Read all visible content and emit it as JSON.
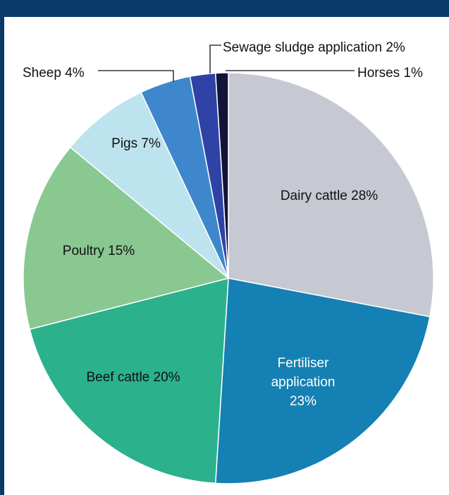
{
  "page": {
    "title": "",
    "frame_color": "#0a3a68"
  },
  "chart_data": {
    "type": "pie",
    "title": "",
    "start_angle_deg": 0,
    "direction": "clockwise",
    "slices": [
      {
        "label": "Dairy cattle",
        "value": 28,
        "display": "Dairy cattle 28%",
        "color": "#c6c9d1",
        "text_color": "#111111"
      },
      {
        "label": "Fertiliser application",
        "value": 23,
        "display": "Fertiliser application 23%",
        "color": "#1580b3",
        "text_color": "#ffffff"
      },
      {
        "label": "Beef cattle",
        "value": 20,
        "display": "Beef cattle 20%",
        "color": "#2bb18c",
        "text_color": "#111111"
      },
      {
        "label": "Poultry",
        "value": 15,
        "display": "Poultry 15%",
        "color": "#8ac892",
        "text_color": "#111111"
      },
      {
        "label": "Pigs",
        "value": 7,
        "display": "Pigs 7%",
        "color": "#bde3ee",
        "text_color": "#111111"
      },
      {
        "label": "Sheep",
        "value": 4,
        "display": "Sheep 4%",
        "color": "#3f87cc",
        "text_color": "#111111"
      },
      {
        "label": "Sewage sludge application",
        "value": 2,
        "display": "Sewage sludge application 2%",
        "color": "#2e43a5",
        "text_color": "#111111"
      },
      {
        "label": "Horses",
        "value": 1,
        "display": "Horses 1%",
        "color": "#14133a",
        "text_color": "#111111"
      }
    ]
  }
}
